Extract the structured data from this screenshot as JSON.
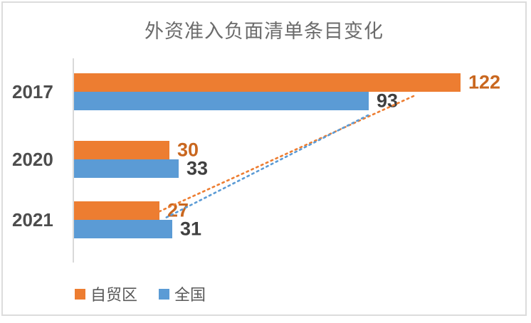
{
  "chart": {
    "title": "外资准入负面清单条目变化",
    "legend": {
      "items": [
        {
          "label": "自贸区",
          "color": "#ED7D31"
        },
        {
          "label": "全国",
          "color": "#5B9BD5"
        }
      ],
      "position": "bottom"
    }
  },
  "chart_data": {
    "type": "bar",
    "orientation": "horizontal",
    "title": "外资准入负面清单条目变化",
    "categories": [
      "2017",
      "2020",
      "2021"
    ],
    "series": [
      {
        "name": "自贸区",
        "key": "ftz",
        "color": "#ED7D31",
        "label_color": "#C9671F",
        "values": [
          122,
          30,
          27
        ]
      },
      {
        "name": "全国",
        "key": "nation",
        "color": "#5B9BD5",
        "label_color": "#3f3f3f",
        "values": [
          93,
          33,
          31
        ]
      }
    ],
    "xlim": [
      0,
      130
    ],
    "grid": false,
    "data_labels": true,
    "legend_position": "bottom",
    "annotations": [
      {
        "type": "trend-line",
        "series": "自贸区",
        "style": "dotted",
        "color": "#ED7D31",
        "from_value": 122,
        "to_value": 27
      },
      {
        "type": "trend-line",
        "series": "全国",
        "style": "dotted",
        "color": "#5B9BD5",
        "from_value": 93,
        "to_value": 31
      }
    ]
  }
}
